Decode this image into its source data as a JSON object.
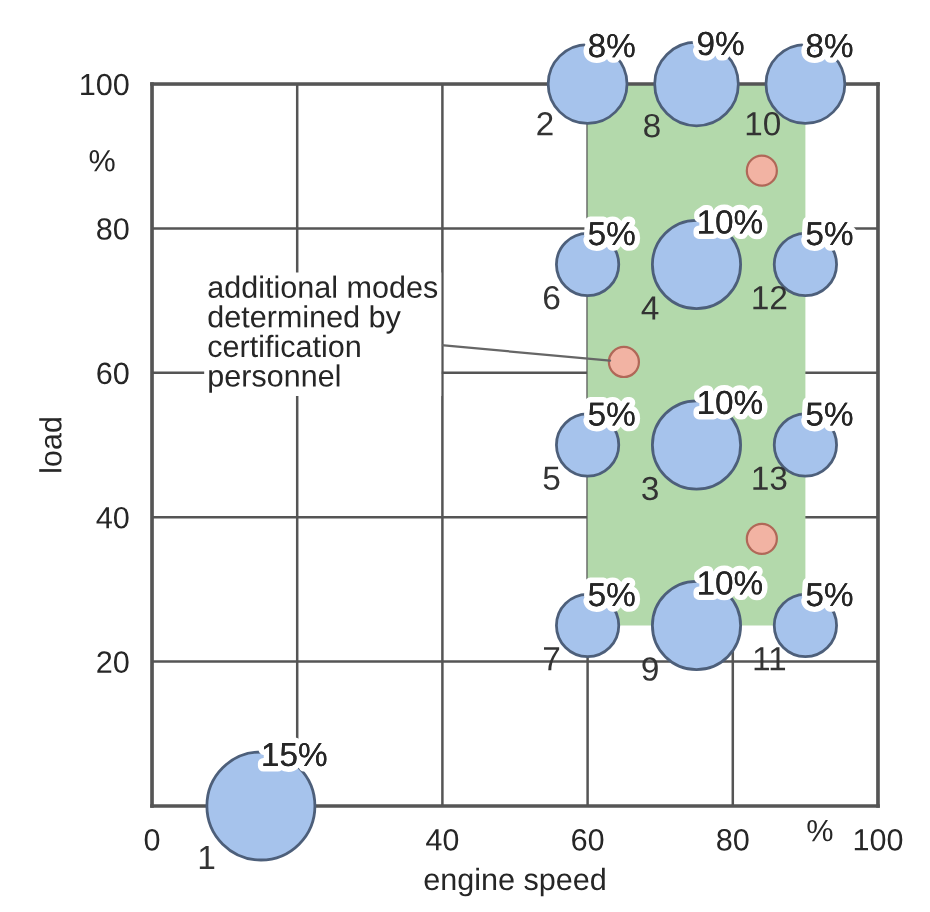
{
  "chart_data": {
    "type": "bubble",
    "xlabel": "engine speed",
    "ylabel": "load",
    "xlim": [
      0,
      100
    ],
    "ylim": [
      0,
      100
    ],
    "xticks": [
      0,
      {
        "value": 20,
        "label": null
      },
      40,
      60,
      80,
      100
    ],
    "yticks": [
      20,
      40,
      60,
      80,
      100
    ],
    "grid": true,
    "series": [
      {
        "type": "bubble",
        "color": "#a6c3ec",
        "x": [
          15,
          60,
          75,
          75,
          60,
          60,
          60,
          75,
          75,
          90,
          90,
          90,
          90
        ],
        "values": [
          0,
          100,
          50,
          75,
          50,
          75,
          25,
          100,
          25,
          100,
          25,
          75,
          50
        ],
        "sizes": [
          1,
          0.533,
          0.667,
          0.667,
          0.333,
          0.333,
          0.333,
          0.6,
          0.667,
          0.533,
          0.333,
          0.333,
          0.333
        ]
      },
      {
        "type": "scatter",
        "color": "#f2b3a3",
        "x": [
          84,
          65,
          84
        ],
        "values": [
          88,
          61.5,
          37
        ]
      }
    ],
    "annotations": [
      {
        "text": "15%",
        "x": 15,
        "y": 0
      },
      {
        "text": "8%",
        "x": 60,
        "y": 100
      },
      {
        "text": "10%",
        "x": 75,
        "y": 50
      },
      {
        "text": "10%",
        "x": 75,
        "y": 75
      },
      {
        "text": "5%",
        "x": 60,
        "y": 50
      },
      {
        "text": "5%",
        "x": 60,
        "y": 75
      },
      {
        "text": "5%",
        "x": 60,
        "y": 25
      },
      {
        "text": "9%",
        "x": 75,
        "y": 100
      },
      {
        "text": "10%",
        "x": 75,
        "y": 25
      },
      {
        "text": "8%",
        "x": 90,
        "y": 100
      },
      {
        "text": "5%",
        "x": 90,
        "y": 25
      },
      {
        "text": "5%",
        "x": 90,
        "y": 75
      },
      {
        "text": "5%",
        "x": 90,
        "y": 50
      },
      {
        "text": "1",
        "x": 15,
        "y": 0
      },
      {
        "text": "2",
        "x": 60,
        "y": 100
      },
      {
        "text": "3",
        "x": 75,
        "y": 50
      },
      {
        "text": "4",
        "x": 75,
        "y": 75
      },
      {
        "text": "5",
        "x": 60,
        "y": 50
      },
      {
        "text": "6",
        "x": 60,
        "y": 75
      },
      {
        "text": "7",
        "x": 60,
        "y": 25
      },
      {
        "text": "8",
        "x": 75,
        "y": 100
      },
      {
        "text": "9",
        "x": 75,
        "y": 25
      },
      {
        "text": "10",
        "x": 90,
        "y": 100
      },
      {
        "text": "11",
        "x": 90,
        "y": 25
      },
      {
        "text": "12",
        "x": 90,
        "y": 75
      },
      {
        "text": "13",
        "x": 90,
        "y": 50
      },
      {
        "text": "additional modes\ndetermined by\ncertification\npersonnel",
        "x": 65,
        "y": 61.5
      },
      "%",
      "%"
    ]
  }
}
